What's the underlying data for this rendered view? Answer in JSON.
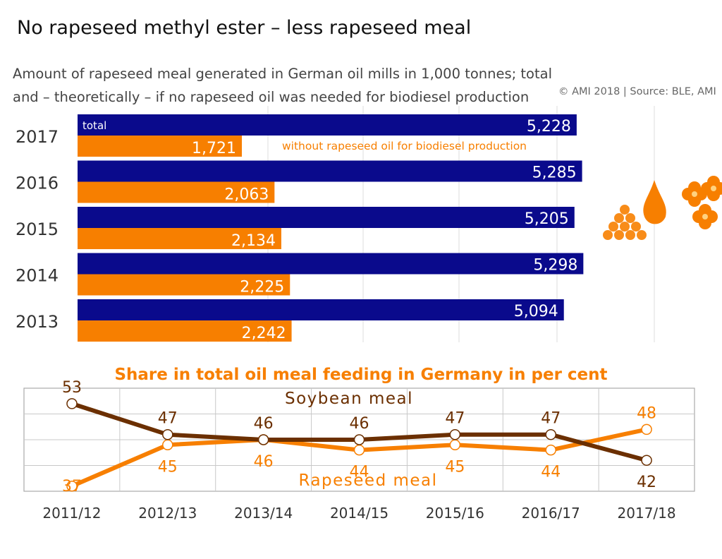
{
  "title": "No rapeseed methyl ester – less rapeseed meal",
  "subtitle": "Amount of rapeseed meal generated in German oil mills in 1,000 tonnes; total and – theoretically – if no rapeseed oil was needed for biodiesel production",
  "source": "© AMI 2018 | Source: BLE, AMI",
  "colors": {
    "total": "#0a0a8c",
    "without": "#f77f00",
    "soy": "#6b2f00",
    "rape": "#f77f00"
  },
  "chart_data": [
    {
      "type": "bar",
      "orientation": "horizontal",
      "categories": [
        "2017",
        "2016",
        "2015",
        "2014",
        "2013"
      ],
      "series": [
        {
          "name": "total",
          "values": [
            5228,
            5285,
            5205,
            5298,
            5094
          ],
          "labels": [
            "5,228",
            "5,285",
            "5,205",
            "5,298",
            "5,094"
          ]
        },
        {
          "name": "without rapeseed oil for biodiesel production",
          "values": [
            1721,
            2063,
            2134,
            2225,
            2242
          ],
          "labels": [
            "1,721",
            "2,063",
            "2,134",
            "2,225",
            "2,242"
          ]
        }
      ],
      "xlim": [
        0,
        5800
      ]
    },
    {
      "type": "line",
      "title": "Share in total oil meal feeding in Germany in per cent",
      "x": [
        "2011/12",
        "2012/13",
        "2013/14",
        "2014/15",
        "2015/16",
        "2016/17",
        "2017/18"
      ],
      "series": [
        {
          "name": "Soybean meal",
          "values": [
            53,
            47,
            46,
            46,
            47,
            47,
            42
          ]
        },
        {
          "name": "Rapeseed meal",
          "values": [
            37,
            45,
            46,
            44,
            45,
            44,
            48
          ]
        }
      ],
      "ylim": [
        36,
        56
      ],
      "grid": true
    }
  ]
}
